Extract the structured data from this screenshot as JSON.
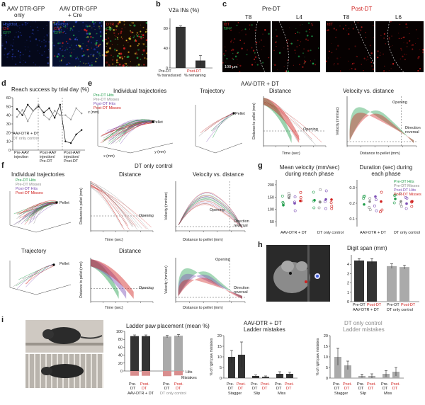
{
  "panel_letters": {
    "a": "a",
    "b": "b",
    "c": "c",
    "d": "d",
    "e": "e",
    "f": "f",
    "g": "g",
    "h": "h",
    "i": "i"
  },
  "a": {
    "title1": "AAV DTR-GFP",
    "title1b": "only",
    "title2": "AAV DTR-GFP",
    "title2b": "+ Cre",
    "legend": [
      "Hoechst",
      "Cre",
      "GFP"
    ],
    "legend2": [
      "DTR",
      "Cre"
    ],
    "colors": {
      "hoechst": "#3a5bd6",
      "cre": "#d0211f",
      "gfp": "#1f9d4a"
    }
  },
  "b": {
    "title": "V2a INs (%)",
    "ytick_labels": [
      "0",
      "40",
      "80"
    ],
    "xlabels": [
      "Pre-DT",
      "Post-DT"
    ],
    "xsub": [
      "% transduced",
      "% remaining"
    ]
  },
  "c": {
    "header_pre": "Pre-DT",
    "header_post": "Post-DT",
    "tiles": [
      "T8",
      "L4",
      "T8",
      "L6"
    ],
    "legend_pre": [
      "tdT",
      "GFP"
    ],
    "legend_post": [
      "tdT"
    ],
    "scale": "100 μm"
  },
  "d": {
    "title": "Reach success by trial day (%)",
    "ytick_labels": [
      "0",
      "10",
      "20",
      "30",
      "40",
      "50",
      "60"
    ],
    "legend1": "AAV-DTR + DT",
    "legend2": "DT only control",
    "xlabels": [
      "Pre-AAV injection",
      "Post-AAV injection/ Pre-DT",
      "Post-AAV injection/ Post-DT"
    ]
  },
  "e": {
    "header": "AAV-DTR + DT",
    "t1": "Individual trajectories",
    "t2": "Trajectory",
    "t3": "Distance",
    "t4": "Velocity vs. distance",
    "legend": [
      "Pre-DT Hits",
      "Pre-DT Misses",
      "Post-DT Hits",
      "Post-DT Misses"
    ],
    "pellet": "Pellet",
    "opening": "Opening",
    "direction": "Direction reversal",
    "xlab_time": "Time (sec)",
    "xlab_dist": "Distance to pellet (mm)",
    "ylab_dist": "Distance to pellet (mm)",
    "ylab_vel": "Velocity (mm/sec)",
    "axes3d": [
      "x (mm)",
      "y (mm)",
      "z (mm)"
    ]
  },
  "f": {
    "header": "DT only control",
    "t1": "Individual trajectories",
    "t2": "Distance",
    "t3": "Velocity vs. distance",
    "t4": "Trajectory",
    "legend": [
      "Pre-DT Hits",
      "Pre-DT Misses",
      "Post-DT Hits",
      "Post-DT Misses"
    ],
    "pellet": "Pellet",
    "opening": "Opening",
    "direction": "Direction reversal",
    "xlab_time": "Time (sec)",
    "xlab_dist": "Distance to pellet (mm)",
    "ylab_dist": "Distance to pellet (mm)",
    "ylab_vel": "Velocity (mm/sec)"
  },
  "g": {
    "t1": "Mean velocity (mm/sec) during reach phase",
    "t2": "Duration (sec) during each phase",
    "legend": [
      "Pre-DT Hits",
      "Pre-DT Misses",
      "Post-DT Hits",
      "Post-DT Misses"
    ],
    "xgroups": [
      "AAV-DTR + DT",
      "DT only control"
    ],
    "ytick1": [
      "50",
      "100",
      "150",
      "200"
    ],
    "ytick2": [
      "0.1",
      "0.2",
      "0.3"
    ]
  },
  "h": {
    "title": "Digit span (mm)",
    "ytick_labels": [
      "0",
      "1",
      "2",
      "3",
      "4"
    ],
    "xlabels": [
      "Pre-DT",
      "Post-DT",
      "Pre-DT",
      "Post-DT"
    ],
    "groups": [
      "AAV-DTR + DT",
      "DT only control"
    ]
  },
  "i": {
    "t1": "Ladder paw placement (mean %)",
    "t2": "AAV-DTR + DT",
    "t2b": "Ladder mistakes",
    "t3": "DT only control",
    "t3b": "Ladder mistakes",
    "hits": "Hits",
    "mistakes": "Mistakes",
    "ytick1": [
      "0",
      "20",
      "40",
      "60",
      "80",
      "100"
    ],
    "ytick2": [
      "0",
      "5",
      "10",
      "15",
      "20"
    ],
    "ylab2": "% of right paw mistakes",
    "groups": [
      "AAV-DTR + DT",
      "DT only control"
    ],
    "pre": "Pre-",
    "post": "Post-",
    "dt": "DT",
    "cats": [
      "Stagger",
      "Slip",
      "Miss"
    ]
  },
  "chart_data": [
    {
      "type": "bar",
      "panel": "b",
      "title": "V2a INs (%)",
      "categories": [
        "Pre-DT",
        "Post-DT"
      ],
      "values": [
        83,
        15
      ],
      "errors": [
        2,
        10
      ],
      "ylim": [
        0,
        100
      ],
      "colors": [
        "#333333",
        "#333333"
      ]
    },
    {
      "type": "line",
      "panel": "d",
      "title": "Reach success by trial day (%)",
      "ylim": [
        0,
        60
      ],
      "series": [
        {
          "name": "AAV-DTR + DT",
          "x": [
            1,
            2,
            3,
            4,
            5,
            6,
            7,
            8,
            9,
            10,
            11,
            12,
            13
          ],
          "values": [
            47,
            40,
            52,
            45,
            50,
            43,
            48,
            37,
            52,
            10,
            8,
            18,
            23
          ]
        },
        {
          "name": "DT only control",
          "x": [
            1,
            2,
            3,
            4,
            5,
            6,
            7,
            8,
            9,
            10,
            11,
            12,
            13
          ],
          "values": [
            38,
            46,
            33,
            45,
            52,
            40,
            35,
            45,
            40,
            40,
            35,
            48,
            42
          ]
        }
      ]
    },
    {
      "type": "bar",
      "panel": "h",
      "title": "Digit span (mm)",
      "categories": [
        "Pre-DT",
        "Post-DT",
        "Pre-DT",
        "Post-DT"
      ],
      "values": [
        4.4,
        4.3,
        3.8,
        3.7
      ],
      "errors": [
        0.2,
        0.3,
        0.25,
        0.2
      ],
      "ylim": [
        0,
        5
      ]
    },
    {
      "type": "bar",
      "panel": "i-placement",
      "title": "Ladder paw placement (mean %)",
      "categories": [
        "Pre-DT",
        "Post-DT",
        "Pre-DT",
        "Post-DT"
      ],
      "values": [
        88,
        88,
        87,
        89
      ],
      "mistakes": [
        12,
        12,
        13,
        11
      ],
      "ylim": [
        -20,
        100
      ]
    },
    {
      "type": "bar",
      "panel": "i-mistakes-dtr",
      "title": "AAV-DTR + DT Ladder mistakes",
      "categories": [
        "Stagger",
        "Slip",
        "Miss"
      ],
      "series": [
        {
          "name": "Pre-DT",
          "values": [
            10,
            1,
            2
          ],
          "errors": [
            3,
            0.5,
            1
          ]
        },
        {
          "name": "Post-DT",
          "values": [
            11,
            0.6,
            2
          ],
          "errors": [
            6,
            0.4,
            0.8
          ]
        }
      ],
      "ylim": [
        0,
        20
      ]
    },
    {
      "type": "bar",
      "panel": "i-mistakes-ctrl",
      "title": "DT only control Ladder mistakes",
      "categories": [
        "Stagger",
        "Slip",
        "Miss"
      ],
      "series": [
        {
          "name": "Pre-DT",
          "values": [
            10,
            1,
            2
          ],
          "errors": [
            4,
            0.8,
            1.5
          ]
        },
        {
          "name": "Post-DT",
          "values": [
            6,
            1,
            3
          ],
          "errors": [
            2,
            1,
            2
          ]
        }
      ],
      "ylim": [
        0,
        20
      ]
    }
  ]
}
